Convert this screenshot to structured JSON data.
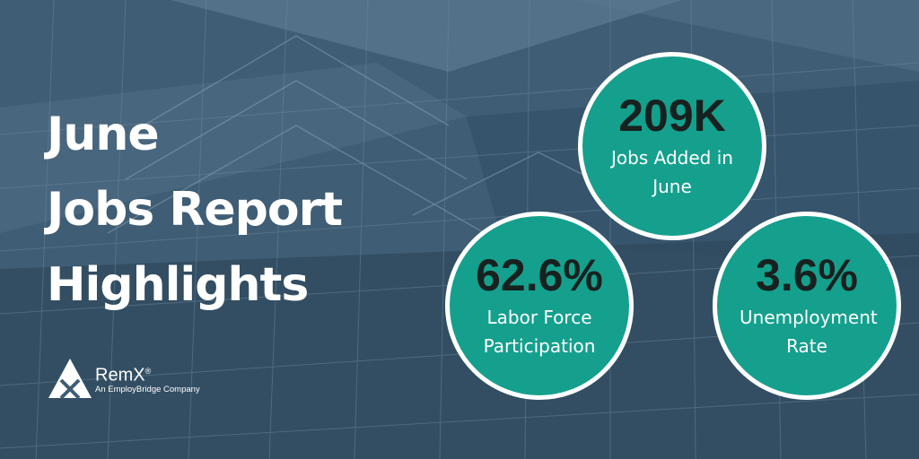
{
  "headline": [
    "June",
    "Jobs Report",
    "Highlights"
  ],
  "stats": [
    {
      "value": "209K",
      "label": "Jobs Added in June"
    },
    {
      "value": "62.6%",
      "label": "Labor Force Participation"
    },
    {
      "value": "3.6%",
      "label": "Unemployment Rate"
    }
  ],
  "logo": {
    "name": "RemX",
    "trademark": "®",
    "tagline": "An EmployBridge Company"
  },
  "colors": {
    "circle": "#14a08d",
    "value_text": "#17211f",
    "background": "#3f5d74"
  }
}
